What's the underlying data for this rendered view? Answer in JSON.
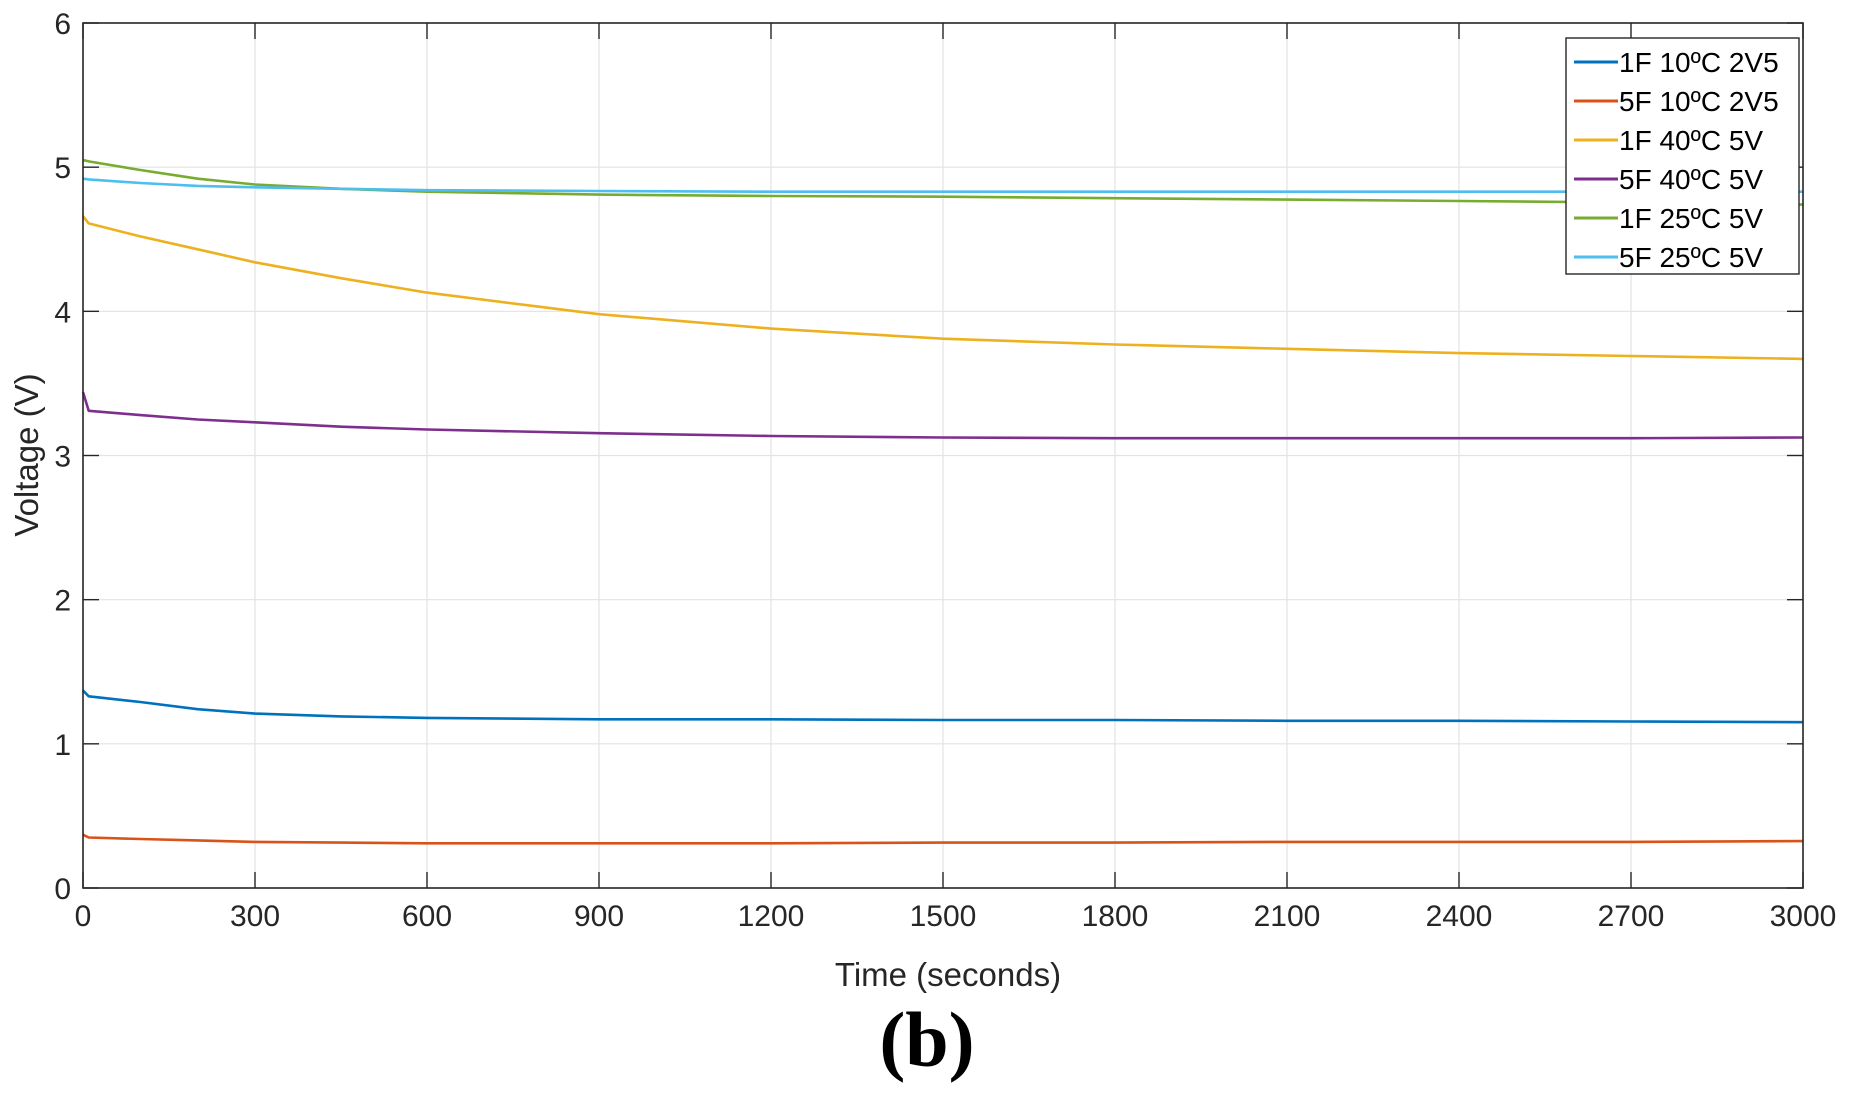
{
  "chart_data": {
    "type": "line",
    "title": "",
    "caption": "(b)",
    "xlabel": "Time (seconds)",
    "ylabel": "Voltage (V)",
    "xlim": [
      0,
      3000
    ],
    "ylim": [
      0,
      6
    ],
    "xticks": [
      0,
      300,
      600,
      900,
      1200,
      1500,
      1800,
      2100,
      2400,
      2700,
      3000
    ],
    "yticks": [
      0,
      1,
      2,
      3,
      4,
      5,
      6
    ],
    "grid": true,
    "legend_position": "upper right",
    "x": [
      0,
      10,
      100,
      200,
      300,
      450,
      600,
      900,
      1200,
      1500,
      1800,
      2100,
      2400,
      2700,
      3000
    ],
    "series": [
      {
        "name": "1F 10ºC 2V5",
        "color": "#0072BD",
        "values": [
          1.37,
          1.33,
          1.29,
          1.24,
          1.21,
          1.19,
          1.18,
          1.17,
          1.17,
          1.165,
          1.165,
          1.16,
          1.16,
          1.155,
          1.15
        ]
      },
      {
        "name": "5F 10ºC 2V5",
        "color": "#D95319",
        "values": [
          0.37,
          0.35,
          0.34,
          0.33,
          0.32,
          0.315,
          0.31,
          0.31,
          0.31,
          0.315,
          0.315,
          0.32,
          0.32,
          0.32,
          0.325
        ]
      },
      {
        "name": "1F 40ºC 5V",
        "color": "#EDB120",
        "values": [
          4.66,
          4.61,
          4.52,
          4.43,
          4.34,
          4.23,
          4.13,
          3.98,
          3.88,
          3.81,
          3.77,
          3.74,
          3.71,
          3.69,
          3.67
        ]
      },
      {
        "name": "5F 40ºC 5V",
        "color": "#7E2F8E",
        "values": [
          3.44,
          3.31,
          3.28,
          3.25,
          3.23,
          3.2,
          3.18,
          3.155,
          3.135,
          3.125,
          3.12,
          3.12,
          3.12,
          3.12,
          3.125
        ]
      },
      {
        "name": "1F 25ºC 5V",
        "color": "#77AC30",
        "values": [
          5.05,
          5.04,
          4.98,
          4.92,
          4.88,
          4.85,
          4.83,
          4.81,
          4.8,
          4.795,
          4.785,
          4.775,
          4.765,
          4.755,
          4.74
        ]
      },
      {
        "name": "5F 25ºC 5V",
        "color": "#4DBEEE",
        "values": [
          4.92,
          4.915,
          4.89,
          4.87,
          4.86,
          4.85,
          4.84,
          4.835,
          4.83,
          4.83,
          4.83,
          4.83,
          4.83,
          4.83,
          4.83
        ]
      }
    ]
  }
}
